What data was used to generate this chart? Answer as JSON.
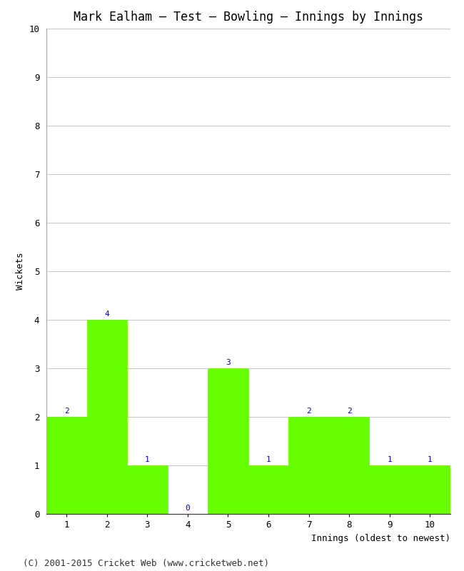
{
  "title": "Mark Ealham – Test – Bowling – Innings by Innings",
  "xlabel": "Innings (oldest to newest)",
  "ylabel": "Wickets",
  "categories": [
    "1",
    "2",
    "3",
    "4",
    "5",
    "6",
    "7",
    "8",
    "9",
    "10"
  ],
  "values": [
    2,
    4,
    1,
    0,
    3,
    1,
    2,
    2,
    1,
    1
  ],
  "bar_color": "#66ff00",
  "bar_edge_color": "#66ff00",
  "label_color": "#0000cc",
  "ylim": [
    0,
    10
  ],
  "yticks": [
    0,
    1,
    2,
    3,
    4,
    5,
    6,
    7,
    8,
    9,
    10
  ],
  "background_color": "#ffffff",
  "grid_color": "#c8c8c8",
  "title_fontsize": 12,
  "axis_label_fontsize": 9,
  "tick_fontsize": 9,
  "value_label_fontsize": 8,
  "footer": "(C) 2001-2015 Cricket Web (www.cricketweb.net)",
  "footer_fontsize": 9
}
